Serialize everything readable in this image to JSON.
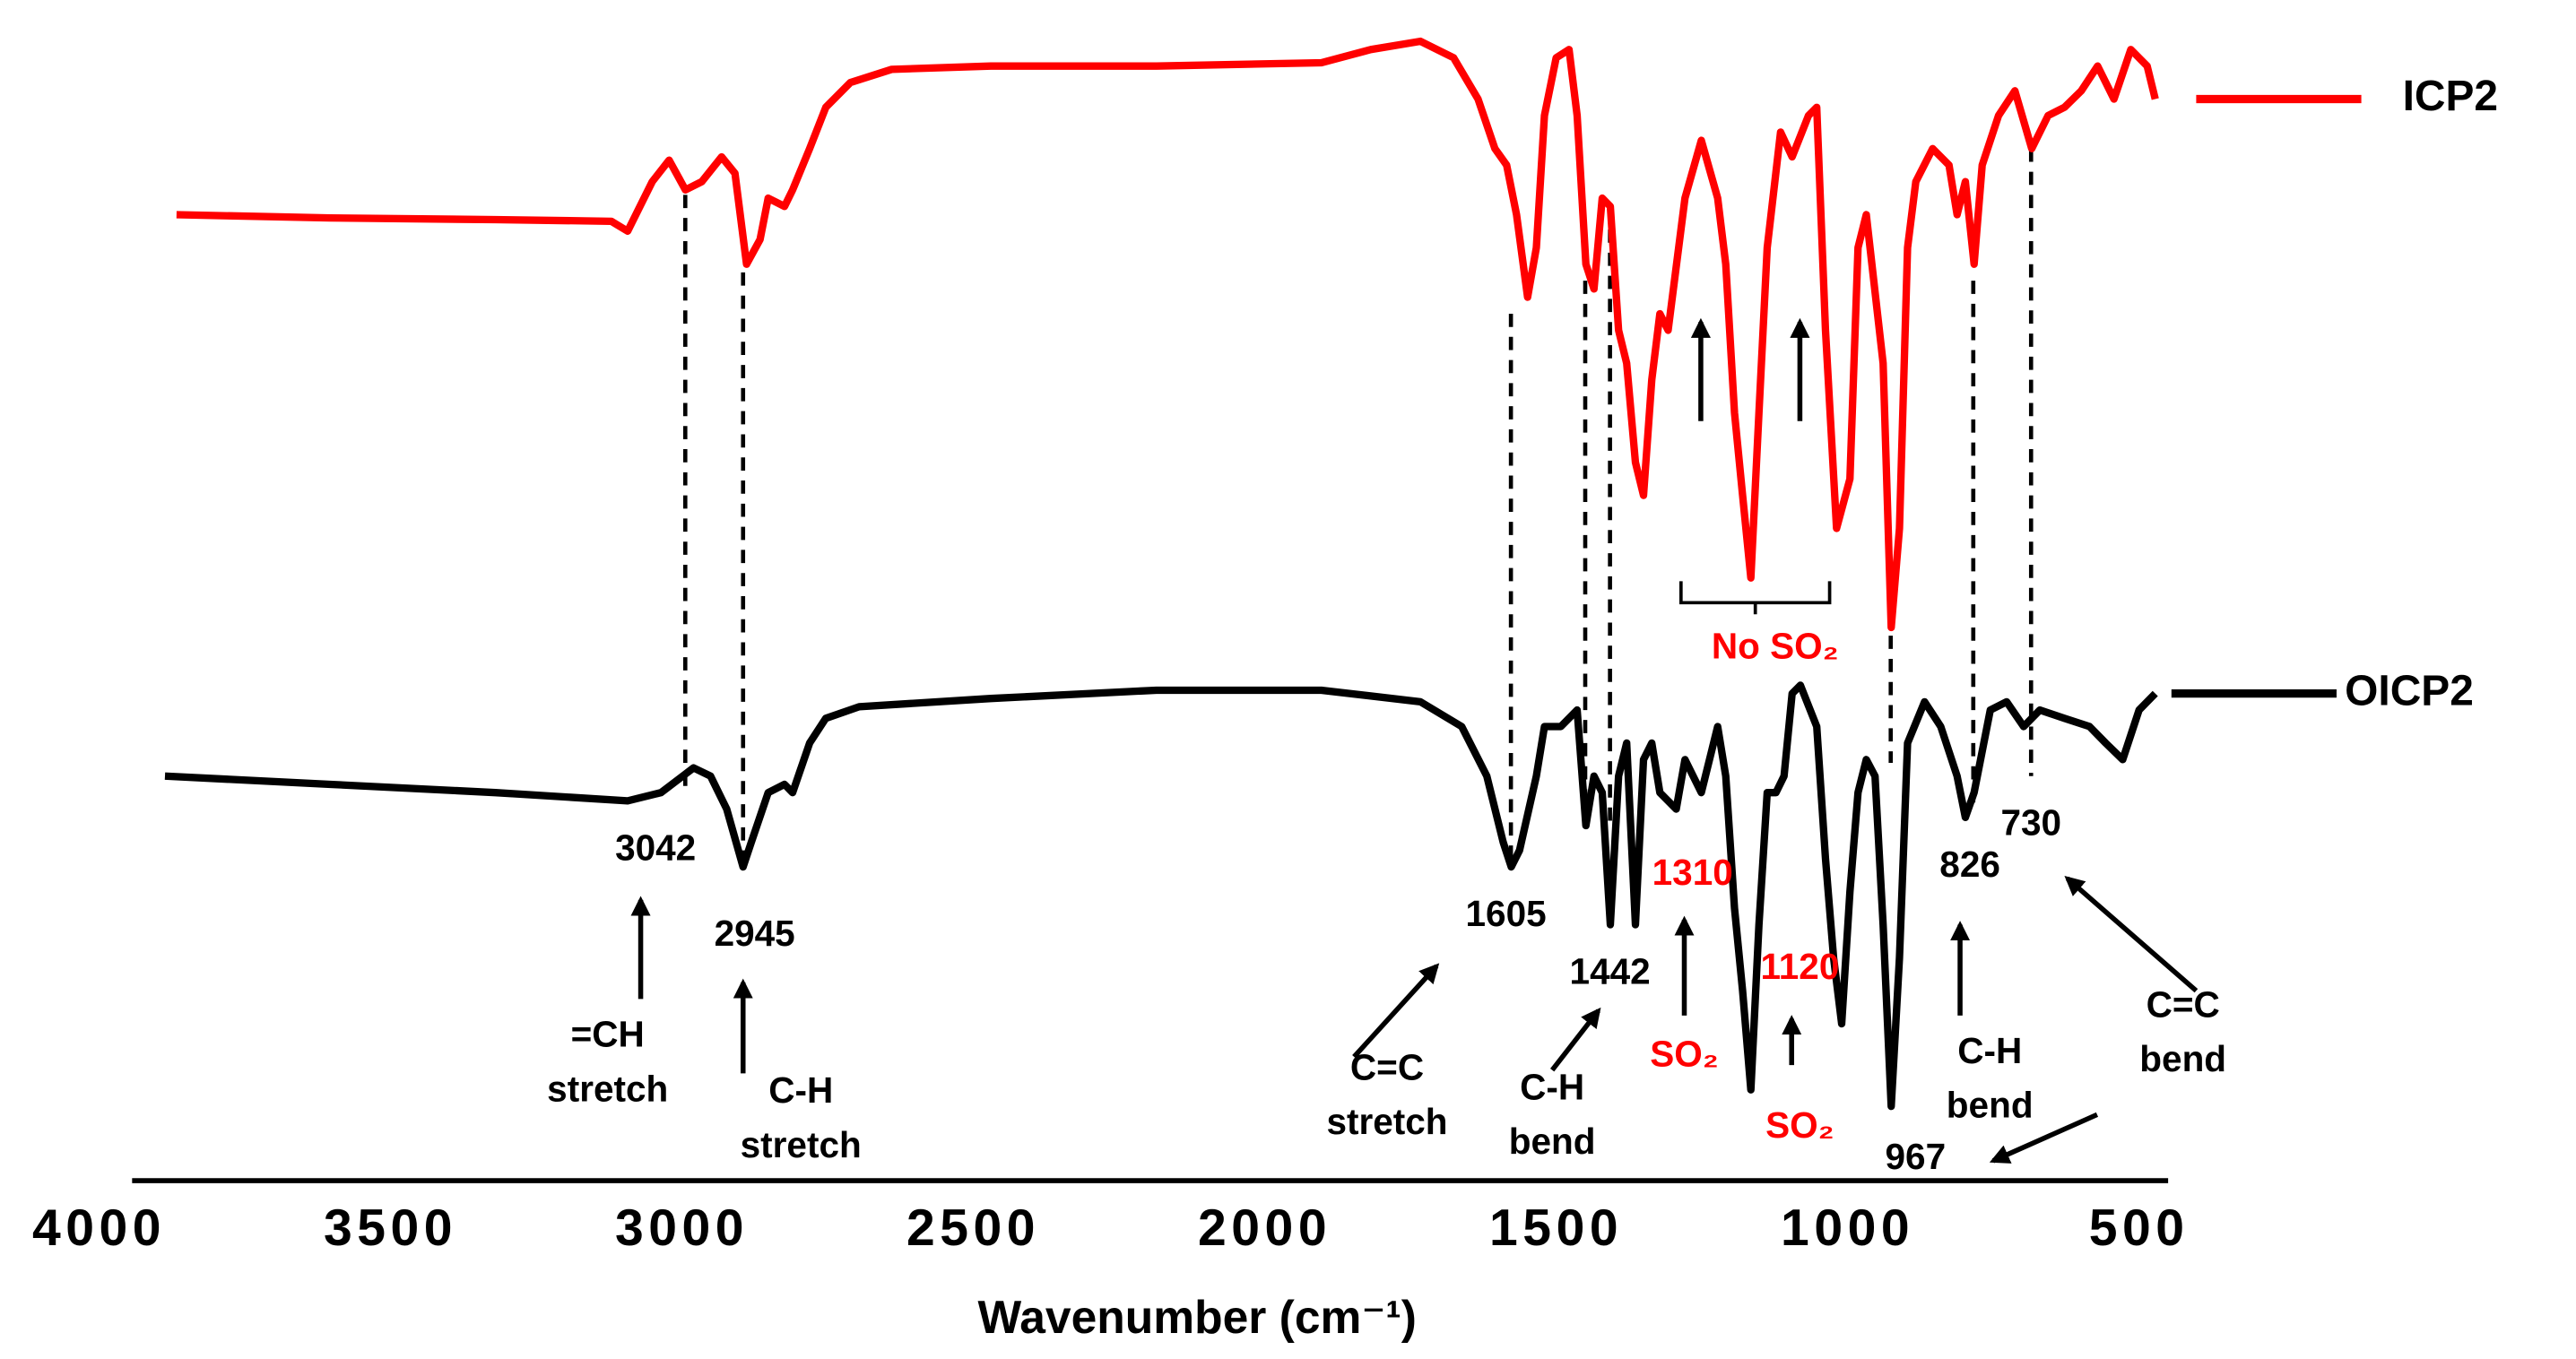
{
  "chart_data": {
    "type": "line",
    "x_label": "Wavenumber (cm⁻¹)",
    "xlim": [
      4000,
      450
    ],
    "xticks": [
      4000,
      3500,
      3000,
      2500,
      2000,
      1500,
      1000,
      500
    ],
    "ylim": [
      0,
      700
    ],
    "grid": false,
    "legend": "right",
    "series": [
      {
        "name": "ICP2",
        "color": "#ff0000",
        "x": [
          3867,
          3603,
          3320,
          3121,
          3093,
          3051,
          3022,
          2994,
          2966,
          2932,
          2909,
          2889,
          2866,
          2852,
          2824,
          2810,
          2781,
          2753,
          2711,
          2640,
          2470,
          2186,
          1903,
          1818,
          1733,
          1676,
          1634,
          1605,
          1585,
          1568,
          1549,
          1534,
          1520,
          1500,
          1478,
          1464,
          1449,
          1435,
          1421,
          1407,
          1393,
          1379,
          1364,
          1350,
          1336,
          1322,
          1308,
          1279,
          1251,
          1223,
          1209,
          1194,
          1180,
          1166,
          1152,
          1138,
          1115,
          1095,
          1067,
          1053,
          1038,
          1019,
          996,
          982,
          968,
          939,
          925,
          911,
          897,
          883,
          854,
          826,
          812,
          798,
          783,
          769,
          741,
          713,
          684,
          656,
          628,
          599,
          571,
          543,
          514,
          486,
          472
        ],
        "values": [
          590,
          588,
          587,
          586,
          580,
          610,
          623,
          605,
          610,
          625,
          615,
          560,
          575,
          600,
          595,
          605,
          630,
          655,
          670,
          678,
          680,
          680,
          682,
          690,
          695,
          685,
          660,
          630,
          620,
          590,
          540,
          570,
          650,
          685,
          690,
          650,
          560,
          545,
          600,
          595,
          520,
          500,
          440,
          420,
          490,
          530,
          520,
          600,
          635,
          600,
          560,
          470,
          420,
          370,
          470,
          570,
          640,
          625,
          650,
          655,
          520,
          400,
          430,
          570,
          590,
          500,
          340,
          400,
          570,
          610,
          630,
          620,
          590,
          610,
          560,
          620,
          650,
          665,
          630,
          650,
          655,
          665,
          680,
          660,
          690,
          680,
          660
        ]
      },
      {
        "name": "OICP2",
        "color": "#000000",
        "x": [
          3887,
          3603,
          3320,
          3093,
          3036,
          2980,
          2951,
          2923,
          2895,
          2881,
          2852,
          2824,
          2810,
          2781,
          2753,
          2696,
          2470,
          2186,
          1903,
          1733,
          1662,
          1619,
          1591,
          1577,
          1563,
          1534,
          1520,
          1492,
          1464,
          1449,
          1435,
          1421,
          1407,
          1393,
          1379,
          1364,
          1350,
          1336,
          1322,
          1294,
          1279,
          1251,
          1223,
          1209,
          1194,
          1180,
          1166,
          1152,
          1138,
          1123,
          1109,
          1095,
          1081,
          1053,
          1038,
          1024,
          1010,
          996,
          982,
          968,
          953,
          939,
          925,
          911,
          897,
          868,
          840,
          812,
          798,
          783,
          755,
          727,
          698,
          670,
          628,
          585,
          557,
          528,
          500,
          472
        ],
        "values": [
          250,
          245,
          240,
          235,
          240,
          255,
          250,
          230,
          195,
          210,
          240,
          245,
          240,
          270,
          285,
          292,
          297,
          302,
          302,
          295,
          280,
          250,
          210,
          195,
          205,
          250,
          280,
          280,
          290,
          220,
          250,
          240,
          160,
          250,
          270,
          160,
          260,
          270,
          240,
          230,
          260,
          240,
          280,
          250,
          170,
          120,
          60,
          160,
          240,
          240,
          250,
          300,
          305,
          280,
          200,
          140,
          100,
          180,
          240,
          260,
          250,
          160,
          50,
          140,
          270,
          295,
          280,
          250,
          225,
          240,
          290,
          295,
          280,
          290,
          285,
          280,
          270,
          260,
          290,
          300
        ]
      }
    ],
    "peak_labels": [
      3042,
      2945,
      1605,
      1442,
      1310,
      1120,
      967,
      826,
      730
    ],
    "peak_label_colors": [
      "#000000",
      "#000000",
      "#000000",
      "#000000",
      "#ff0000",
      "#ff0000",
      "#000000",
      "#000000",
      "#000000"
    ],
    "annotations": [
      {
        "lines": [
          "=CH",
          "stretch"
        ],
        "color": "#000000"
      },
      {
        "lines": [
          "C-H",
          "stretch"
        ],
        "color": "#000000"
      },
      {
        "lines": [
          "C=C",
          "stretch"
        ],
        "color": "#000000"
      },
      {
        "lines": [
          "C-H",
          "bend"
        ],
        "color": "#000000"
      },
      {
        "lines": [
          "SO₂"
        ],
        "color": "#ff0000"
      },
      {
        "lines": [
          "SO₂"
        ],
        "color": "#ff0000"
      },
      {
        "lines": [
          "C-H",
          "bend"
        ],
        "color": "#000000"
      },
      {
        "lines": [
          "C=C",
          "bend"
        ],
        "color": "#000000"
      },
      {
        "lines": [
          "No  SO₂"
        ],
        "color": "#ff0000"
      }
    ]
  }
}
